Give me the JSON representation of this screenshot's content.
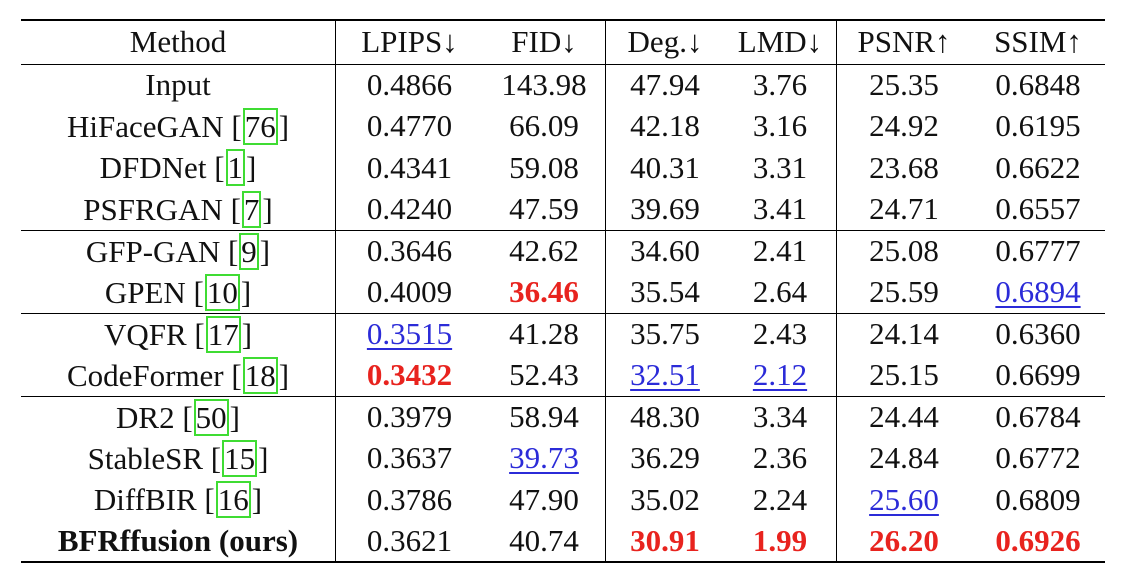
{
  "headers": [
    "Method",
    "LPIPS↓",
    "FID↓",
    "Deg.↓",
    "LMD↓",
    "PSNR↑",
    "SSIM↑"
  ],
  "rows": [
    {
      "method": "Input",
      "cite": "",
      "vals": [
        "0.4866",
        "143.98",
        "47.94",
        "3.76",
        "25.35",
        "0.6848"
      ],
      "style": [
        "",
        "",
        "",
        "",
        "",
        ""
      ],
      "group_start": false
    },
    {
      "method": "HiFaceGAN",
      "cite": "76",
      "vals": [
        "0.4770",
        "66.09",
        "42.18",
        "3.16",
        "24.92",
        "0.6195"
      ],
      "style": [
        "",
        "",
        "",
        "",
        "",
        ""
      ],
      "group_start": false
    },
    {
      "method": "DFDNet",
      "cite": "1",
      "vals": [
        "0.4341",
        "59.08",
        "40.31",
        "3.31",
        "23.68",
        "0.6622"
      ],
      "style": [
        "",
        "",
        "",
        "",
        "",
        ""
      ],
      "group_start": false
    },
    {
      "method": "PSFRGAN",
      "cite": "7",
      "vals": [
        "0.4240",
        "47.59",
        "39.69",
        "3.41",
        "24.71",
        "0.6557"
      ],
      "style": [
        "",
        "",
        "",
        "",
        "",
        ""
      ],
      "group_start": false
    },
    {
      "method": "GFP-GAN",
      "cite": "9",
      "vals": [
        "0.3646",
        "42.62",
        "34.60",
        "2.41",
        "25.08",
        "0.6777"
      ],
      "style": [
        "",
        "",
        "",
        "",
        "",
        ""
      ],
      "group_start": true
    },
    {
      "method": "GPEN",
      "cite": "10",
      "vals": [
        "0.4009",
        "36.46",
        "35.54",
        "2.64",
        "25.59",
        "0.6894"
      ],
      "style": [
        "",
        "best",
        "",
        "",
        "",
        "second"
      ],
      "group_start": false
    },
    {
      "method": "VQFR",
      "cite": "17",
      "vals": [
        "0.3515",
        "41.28",
        "35.75",
        "2.43",
        "24.14",
        "0.6360"
      ],
      "style": [
        "second",
        "",
        "",
        "",
        "",
        ""
      ],
      "group_start": true
    },
    {
      "method": "CodeFormer",
      "cite": "18",
      "vals": [
        "0.3432",
        "52.43",
        "32.51",
        "2.12",
        "25.15",
        "0.6699"
      ],
      "style": [
        "best",
        "",
        "second",
        "second",
        "",
        ""
      ],
      "group_start": false
    },
    {
      "method": "DR2",
      "cite": "50",
      "vals": [
        "0.3979",
        "58.94",
        "48.30",
        "3.34",
        "24.44",
        "0.6784"
      ],
      "style": [
        "",
        "",
        "",
        "",
        "",
        ""
      ],
      "group_start": true
    },
    {
      "method": "StableSR",
      "cite": "15",
      "vals": [
        "0.3637",
        "39.73",
        "36.29",
        "2.36",
        "24.84",
        "0.6772"
      ],
      "style": [
        "",
        "second",
        "",
        "",
        "",
        ""
      ],
      "group_start": false
    },
    {
      "method": "DiffBIR",
      "cite": "16",
      "vals": [
        "0.3786",
        "47.90",
        "35.02",
        "2.24",
        "25.60",
        "0.6809"
      ],
      "style": [
        "",
        "",
        "",
        "",
        "second",
        ""
      ],
      "group_start": false
    },
    {
      "method": "BFRffusion (ours)",
      "cite": "",
      "vals": [
        "0.3621",
        "40.74",
        "30.91",
        "1.99",
        "26.20",
        "0.6926"
      ],
      "style": [
        "",
        "",
        "best",
        "best",
        "best",
        "best"
      ],
      "group_start": false,
      "bold_method": true
    }
  ],
  "colors": {
    "best": "#e8231e",
    "second": "#2b2bd8",
    "cite_box": "#3fdc33"
  }
}
